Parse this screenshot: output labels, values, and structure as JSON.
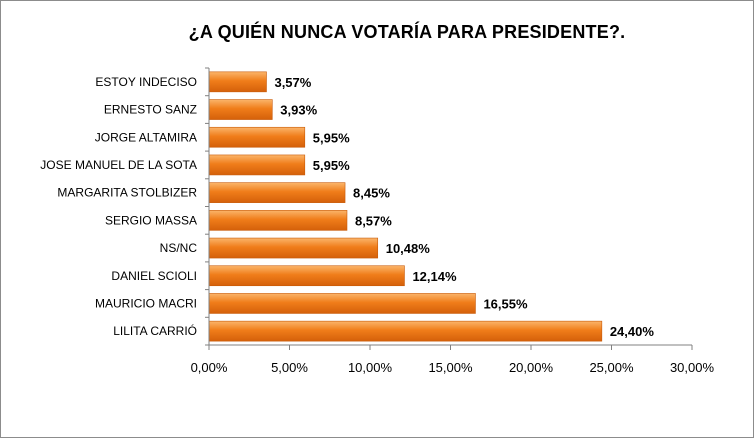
{
  "chart_data": {
    "type": "bar",
    "orientation": "horizontal",
    "title": "¿A QUIÉN NUNCA VOTARÍA PARA PRESIDENTE?.",
    "categories": [
      "ESTOY INDECISO",
      "ERNESTO SANZ",
      "JORGE ALTAMIRA",
      "JOSE MANUEL DE LA SOTA",
      "MARGARITA STOLBIZER",
      "SERGIO MASSA",
      "NS/NC",
      "DANIEL SCIOLI",
      "MAURICIO MACRI",
      "LILITA CARRIÓ"
    ],
    "values": [
      3.57,
      3.93,
      5.95,
      5.95,
      8.45,
      8.57,
      10.48,
      12.14,
      16.55,
      24.4
    ],
    "value_labels": [
      "3,57%",
      "3,93%",
      "5,95%",
      "5,95%",
      "8,45%",
      "8,57%",
      "10,48%",
      "12,14%",
      "16,55%",
      "24,40%"
    ],
    "xlim": [
      0,
      30
    ],
    "x_ticks": [
      0,
      5,
      10,
      15,
      20,
      25,
      30
    ],
    "x_tick_labels": [
      "0,00%",
      "5,00%",
      "10,00%",
      "15,00%",
      "20,00%",
      "25,00%",
      "30,00%"
    ],
    "grid": false,
    "legend": "none",
    "bar_color": "#f07d1a",
    "bar_color_light": "#fbb56b",
    "bar_color_dark": "#d4600a"
  }
}
